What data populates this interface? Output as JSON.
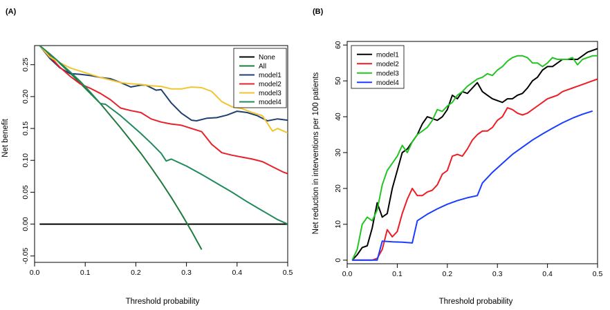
{
  "colors": {
    "none": "#000000",
    "all": "#1e7a3c",
    "model1": "#1f3f6e",
    "model2": "#e8202a",
    "model3": "#f2c530",
    "model4": "#1f8a5a",
    "b_model1": "#000000",
    "b_model2": "#ee1c24",
    "b_model3": "#22c422",
    "b_model4": "#1a3cff"
  },
  "chart_data": [
    {
      "panel_label": "(A)",
      "type": "line",
      "title": "",
      "xlabel": "Threshold probability",
      "ylabel": "Net benefit",
      "xlim": [
        0,
        0.5
      ],
      "ylim": [
        -0.06,
        0.28
      ],
      "xticks": [
        0.0,
        0.1,
        0.2,
        0.3,
        0.4,
        0.5
      ],
      "xtick_labels": [
        "0.0",
        "0.1",
        "0.2",
        "0.3",
        "0.4",
        "0.5"
      ],
      "yticks": [
        -0.05,
        0.0,
        0.05,
        0.1,
        0.15,
        0.2,
        0.25
      ],
      "ytick_labels": [
        "-0.05",
        "0.00",
        "0.05",
        "0.10",
        "0.15",
        "0.20",
        "0.25"
      ],
      "grid": false,
      "legend_position": "top-right",
      "legend": [
        "None",
        "All",
        "model1",
        "model2",
        "model3",
        "model4"
      ],
      "series": [
        {
          "name": "None",
          "color_key": "none",
          "x": [
            0.01,
            0.5
          ],
          "y": [
            0.0,
            0.0
          ]
        },
        {
          "name": "All",
          "color_key": "all",
          "x": [
            0.01,
            0.03,
            0.05,
            0.07,
            0.09,
            0.11,
            0.13,
            0.15,
            0.17,
            0.19,
            0.21,
            0.23,
            0.25,
            0.27,
            0.29,
            0.31,
            0.33
          ],
          "y": [
            0.28,
            0.266,
            0.252,
            0.237,
            0.221,
            0.205,
            0.189,
            0.17,
            0.151,
            0.131,
            0.111,
            0.089,
            0.066,
            0.042,
            0.016,
            -0.011,
            -0.04
          ]
        },
        {
          "name": "model1",
          "color_key": "model1",
          "x": [
            0.01,
            0.03,
            0.05,
            0.07,
            0.09,
            0.11,
            0.13,
            0.15,
            0.17,
            0.19,
            0.21,
            0.22,
            0.24,
            0.25,
            0.27,
            0.29,
            0.31,
            0.32,
            0.34,
            0.36,
            0.38,
            0.4,
            0.42,
            0.44,
            0.46,
            0.48,
            0.5
          ],
          "y": [
            0.28,
            0.26,
            0.245,
            0.236,
            0.235,
            0.233,
            0.23,
            0.228,
            0.222,
            0.215,
            0.218,
            0.218,
            0.21,
            0.211,
            0.19,
            0.174,
            0.163,
            0.162,
            0.166,
            0.167,
            0.171,
            0.177,
            0.175,
            0.17,
            0.162,
            0.165,
            0.163
          ]
        },
        {
          "name": "model2",
          "color_key": "model2",
          "x": [
            0.01,
            0.03,
            0.05,
            0.07,
            0.09,
            0.11,
            0.13,
            0.15,
            0.17,
            0.19,
            0.21,
            0.23,
            0.25,
            0.27,
            0.29,
            0.31,
            0.33,
            0.35,
            0.37,
            0.39,
            0.41,
            0.43,
            0.45,
            0.47,
            0.49,
            0.5
          ],
          "y": [
            0.28,
            0.263,
            0.246,
            0.232,
            0.22,
            0.213,
            0.205,
            0.195,
            0.182,
            0.178,
            0.175,
            0.165,
            0.16,
            0.157,
            0.155,
            0.15,
            0.145,
            0.125,
            0.112,
            0.108,
            0.105,
            0.102,
            0.098,
            0.09,
            0.082,
            0.079
          ]
        },
        {
          "name": "model3",
          "color_key": "model3",
          "x": [
            0.01,
            0.03,
            0.05,
            0.07,
            0.09,
            0.11,
            0.13,
            0.15,
            0.17,
            0.19,
            0.21,
            0.23,
            0.25,
            0.27,
            0.29,
            0.31,
            0.33,
            0.35,
            0.37,
            0.39,
            0.41,
            0.43,
            0.45,
            0.46,
            0.47,
            0.48,
            0.5
          ],
          "y": [
            0.28,
            0.262,
            0.253,
            0.245,
            0.24,
            0.235,
            0.23,
            0.226,
            0.222,
            0.22,
            0.219,
            0.217,
            0.216,
            0.212,
            0.212,
            0.215,
            0.214,
            0.208,
            0.192,
            0.184,
            0.181,
            0.175,
            0.17,
            0.158,
            0.146,
            0.15,
            0.143
          ]
        },
        {
          "name": "model4",
          "color_key": "model4",
          "x": [
            0.01,
            0.03,
            0.05,
            0.07,
            0.09,
            0.11,
            0.13,
            0.14,
            0.15,
            0.17,
            0.19,
            0.21,
            0.23,
            0.25,
            0.26,
            0.27,
            0.3,
            0.33,
            0.36,
            0.39,
            0.42,
            0.45,
            0.48,
            0.5
          ],
          "y": [
            0.28,
            0.267,
            0.253,
            0.239,
            0.224,
            0.207,
            0.189,
            0.188,
            0.182,
            0.17,
            0.156,
            0.142,
            0.127,
            0.111,
            0.099,
            0.102,
            0.091,
            0.078,
            0.064,
            0.05,
            0.035,
            0.021,
            0.007,
            0.0
          ]
        }
      ]
    },
    {
      "panel_label": "(B)",
      "type": "line",
      "title": "",
      "xlabel": "Threshold probability",
      "ylabel": "Net reduction in interventions per 100 patients",
      "xlim": [
        0,
        0.5
      ],
      "ylim": [
        -1,
        61
      ],
      "xticks": [
        0.0,
        0.1,
        0.2,
        0.3,
        0.4,
        0.5
      ],
      "xtick_labels": [
        "0.0",
        "0.1",
        "0.2",
        "0.3",
        "0.4",
        "0.5"
      ],
      "yticks": [
        0,
        10,
        20,
        30,
        40,
        50,
        60
      ],
      "ytick_labels": [
        "0",
        "10",
        "20",
        "30",
        "40",
        "50",
        "60"
      ],
      "grid": false,
      "legend_position": "top-left",
      "legend": [
        "model1",
        "model2",
        "model3",
        "model4"
      ],
      "series": [
        {
          "name": "model1",
          "color_key": "b_model1",
          "x": [
            0.01,
            0.02,
            0.03,
            0.04,
            0.05,
            0.06,
            0.07,
            0.08,
            0.09,
            0.1,
            0.11,
            0.12,
            0.13,
            0.14,
            0.15,
            0.16,
            0.17,
            0.18,
            0.19,
            0.2,
            0.21,
            0.22,
            0.23,
            0.24,
            0.25,
            0.26,
            0.27,
            0.28,
            0.29,
            0.3,
            0.31,
            0.32,
            0.33,
            0.34,
            0.35,
            0.36,
            0.37,
            0.38,
            0.39,
            0.4,
            0.41,
            0.42,
            0.43,
            0.44,
            0.45,
            0.46,
            0.47,
            0.48,
            0.49,
            0.5
          ],
          "y": [
            0,
            1.5,
            3.5,
            4,
            9,
            16,
            12,
            13,
            20,
            25,
            30,
            31,
            33,
            35,
            38,
            40,
            39.5,
            39,
            40,
            42,
            46,
            45,
            47,
            46.5,
            48,
            49.5,
            47,
            46,
            45,
            44.5,
            44,
            45,
            45,
            46,
            46.5,
            48,
            50,
            51,
            53,
            54,
            54,
            55,
            56,
            56,
            56,
            56,
            57,
            58,
            58.5,
            59
          ]
        },
        {
          "name": "model2",
          "color_key": "b_model2",
          "x": [
            0.01,
            0.02,
            0.03,
            0.04,
            0.05,
            0.06,
            0.07,
            0.08,
            0.09,
            0.1,
            0.11,
            0.12,
            0.13,
            0.14,
            0.15,
            0.16,
            0.17,
            0.18,
            0.19,
            0.2,
            0.21,
            0.22,
            0.23,
            0.24,
            0.25,
            0.26,
            0.27,
            0.28,
            0.29,
            0.3,
            0.31,
            0.32,
            0.33,
            0.34,
            0.35,
            0.36,
            0.37,
            0.38,
            0.39,
            0.4,
            0.41,
            0.42,
            0.43,
            0.44,
            0.45,
            0.46,
            0.47,
            0.48,
            0.49,
            0.5
          ],
          "y": [
            0,
            0,
            0,
            0,
            0,
            0.5,
            3,
            8.5,
            6.5,
            8,
            13,
            17,
            20,
            18,
            18,
            19,
            19.5,
            21,
            24,
            25,
            29,
            29.5,
            29,
            31,
            33.5,
            35,
            36,
            36,
            37,
            39,
            40,
            42.5,
            42,
            41,
            40.5,
            41,
            42,
            43,
            44,
            45,
            45.5,
            46,
            47,
            47.5,
            48,
            48.5,
            49,
            49.5,
            50,
            50.5
          ]
        },
        {
          "name": "model3",
          "color_key": "b_model3",
          "x": [
            0.01,
            0.02,
            0.03,
            0.04,
            0.05,
            0.06,
            0.07,
            0.08,
            0.09,
            0.1,
            0.11,
            0.12,
            0.13,
            0.14,
            0.15,
            0.16,
            0.17,
            0.18,
            0.19,
            0.2,
            0.21,
            0.22,
            0.23,
            0.24,
            0.25,
            0.26,
            0.27,
            0.28,
            0.29,
            0.3,
            0.31,
            0.32,
            0.33,
            0.34,
            0.35,
            0.36,
            0.37,
            0.38,
            0.39,
            0.4,
            0.41,
            0.42,
            0.43,
            0.44,
            0.45,
            0.46,
            0.47,
            0.48,
            0.49,
            0.5
          ],
          "y": [
            0,
            3,
            10,
            12,
            11,
            14,
            21,
            25,
            27,
            29,
            32,
            30,
            33,
            35,
            36,
            37,
            39,
            42,
            41.5,
            43,
            44,
            46,
            47,
            48.5,
            49.5,
            50.5,
            51,
            52,
            51.5,
            53,
            54,
            55.5,
            56.5,
            57,
            57,
            56.5,
            55,
            55,
            54,
            55,
            56.5,
            56,
            56,
            56,
            56.5,
            54.5,
            56,
            56.5,
            57,
            57
          ]
        },
        {
          "name": "model4",
          "color_key": "b_model4",
          "x": [
            0.01,
            0.03,
            0.05,
            0.06,
            0.07,
            0.09,
            0.11,
            0.13,
            0.14,
            0.16,
            0.18,
            0.2,
            0.22,
            0.24,
            0.26,
            0.27,
            0.29,
            0.31,
            0.33,
            0.35,
            0.37,
            0.39,
            0.41,
            0.43,
            0.45,
            0.47,
            0.49
          ],
          "y": [
            0,
            0,
            0,
            0,
            5.3,
            5.1,
            5,
            4.8,
            11,
            12.8,
            14.3,
            15.6,
            16.6,
            17.4,
            18,
            21.5,
            24.5,
            27,
            29.5,
            31.5,
            33.5,
            35.2,
            36.8,
            38.3,
            39.6,
            40.7,
            41.6
          ]
        }
      ]
    }
  ]
}
